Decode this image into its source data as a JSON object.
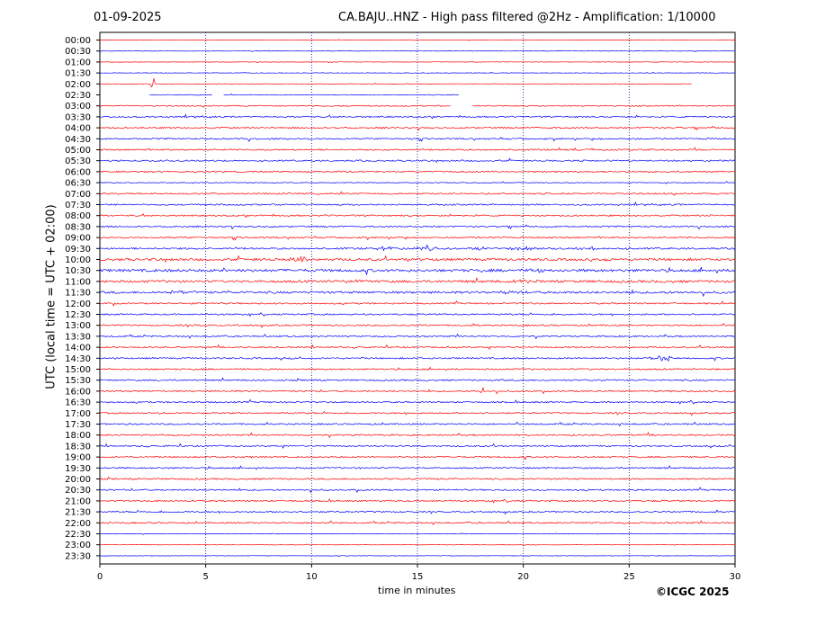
{
  "header": {
    "date": "01-09-2025",
    "title": "CA.BAJU..HNZ - High pass filtered @2Hz - Amplification: 1/10000"
  },
  "footer": {
    "copyright": "©ICGC 2025"
  },
  "colors": {
    "trace_a": "#ff0000",
    "trace_b": "#0000ff",
    "axis": "#000000",
    "grid": "#000080"
  },
  "chart_data": {
    "type": "line",
    "xlabel": "time in minutes",
    "ylabel": "UTC (local time = UTC + 02:00)",
    "xlim": [
      0,
      30
    ],
    "x_ticks": [
      0,
      5,
      10,
      15,
      20,
      25,
      30
    ],
    "grid": "vertical dotted lines at every 5 minutes",
    "row_labels": [
      "00:00",
      "00:30",
      "01:00",
      "01:30",
      "02:00",
      "02:30",
      "03:00",
      "03:30",
      "04:00",
      "04:30",
      "05:00",
      "05:30",
      "06:00",
      "06:30",
      "07:00",
      "07:30",
      "08:00",
      "08:30",
      "09:00",
      "09:30",
      "10:00",
      "10:30",
      "11:00",
      "11:30",
      "12:00",
      "12:30",
      "13:00",
      "13:30",
      "14:00",
      "14:30",
      "15:00",
      "15:30",
      "16:00",
      "16:30",
      "17:00",
      "17:30",
      "18:00",
      "18:30",
      "19:00",
      "19:30",
      "20:00",
      "20:30",
      "21:00",
      "21:30",
      "22:00",
      "22:30",
      "23:00",
      "23:30"
    ],
    "row_colors": [
      "red",
      "blue",
      "red",
      "blue",
      "red",
      "blue",
      "red",
      "blue",
      "red",
      "blue",
      "red",
      "blue",
      "red",
      "blue",
      "red",
      "blue",
      "red",
      "blue",
      "red",
      "blue",
      "red",
      "blue",
      "red",
      "blue",
      "red",
      "blue",
      "red",
      "blue",
      "red",
      "blue",
      "red",
      "blue",
      "red",
      "blue",
      "red",
      "blue",
      "red",
      "blue",
      "red",
      "blue",
      "red",
      "blue",
      "red",
      "blue",
      "red",
      "blue",
      "red",
      "blue"
    ],
    "rows_noise": [
      0.3,
      0.3,
      0.3,
      0.3,
      0.3,
      0.5,
      0.8,
      1.0,
      1.0,
      1.0,
      1.0,
      1.0,
      1.0,
      0.5,
      1.0,
      1.0,
      1.0,
      1.0,
      1.0,
      1.2,
      1.6,
      1.8,
      1.6,
      1.5,
      1.0,
      1.0,
      1.0,
      1.0,
      1.0,
      1.0,
      1.0,
      1.0,
      1.0,
      1.0,
      1.0,
      1.0,
      1.0,
      1.0,
      1.0,
      1.0,
      1.0,
      1.0,
      1.0,
      1.0,
      1.0,
      0.3,
      0.3,
      0.3
    ],
    "data_gaps": [
      {
        "row": "02:00",
        "from_min": 28.0,
        "to_min": 30
      },
      {
        "row": "02:30",
        "from_min": 0,
        "to_min": 2.3
      },
      {
        "row": "02:30",
        "from_min": 5.3,
        "to_min": 5.8
      },
      {
        "row": "02:30",
        "from_min": 17.0,
        "to_min": 30
      },
      {
        "row": "03:00",
        "from_min": 16.6,
        "to_min": 17.6
      }
    ],
    "bursts": [
      {
        "row": "02:00",
        "minute": 2.5,
        "amplitude": 20
      },
      {
        "row": "09:30",
        "minute": 13.5,
        "amplitude": 5
      },
      {
        "row": "09:30",
        "minute": 15.5,
        "amplitude": 4
      },
      {
        "row": "09:30",
        "minute": 18.0,
        "amplitude": 4
      },
      {
        "row": "09:30",
        "minute": 20.0,
        "amplitude": 4
      },
      {
        "row": "09:30",
        "minute": 23.0,
        "amplitude": 5
      },
      {
        "row": "10:00",
        "minute": 9.5,
        "amplitude": 5
      },
      {
        "row": "10:00",
        "minute": 14.5,
        "amplitude": 4
      },
      {
        "row": "10:00",
        "minute": 23.5,
        "amplitude": 4
      },
      {
        "row": "10:30",
        "minute": 6.0,
        "amplitude": 4
      },
      {
        "row": "10:30",
        "minute": 20.5,
        "amplitude": 4
      },
      {
        "row": "11:00",
        "minute": 12.0,
        "amplitude": 4
      },
      {
        "row": "11:00",
        "minute": 20.0,
        "amplitude": 4
      },
      {
        "row": "11:30",
        "minute": 4.0,
        "amplitude": 4
      },
      {
        "row": "11:30",
        "minute": 19.5,
        "amplitude": 4
      },
      {
        "row": "14:30",
        "minute": 26.6,
        "amplitude": 8
      },
      {
        "row": "16:00",
        "minute": 18.1,
        "amplitude": 12
      }
    ]
  }
}
